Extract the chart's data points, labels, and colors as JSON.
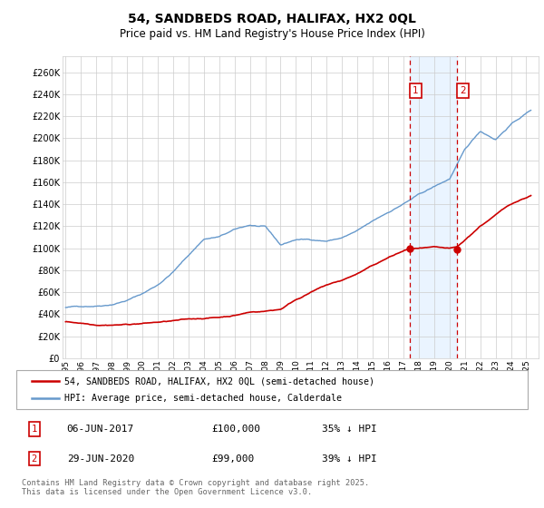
{
  "title": "54, SANDBEDS ROAD, HALIFAX, HX2 0QL",
  "subtitle": "Price paid vs. HM Land Registry's House Price Index (HPI)",
  "ylabel_ticks": [
    0,
    20000,
    40000,
    60000,
    80000,
    100000,
    120000,
    140000,
    160000,
    180000,
    200000,
    220000,
    240000,
    260000
  ],
  "ylabel_labels": [
    "£0",
    "£20K",
    "£40K",
    "£60K",
    "£80K",
    "£100K",
    "£120K",
    "£140K",
    "£160K",
    "£180K",
    "£200K",
    "£220K",
    "£240K",
    "£260K"
  ],
  "xmin": 1994.8,
  "xmax": 2025.8,
  "ymin": 0,
  "ymax": 275000,
  "vline1_x": 2017.43,
  "vline2_x": 2020.5,
  "legend_entry1": "54, SANDBEDS ROAD, HALIFAX, HX2 0QL (semi-detached house)",
  "legend_entry2": "HPI: Average price, semi-detached house, Calderdale",
  "table_row1": [
    "1",
    "06-JUN-2017",
    "£100,000",
    "35% ↓ HPI"
  ],
  "table_row2": [
    "2",
    "29-JUN-2020",
    "£99,000",
    "39% ↓ HPI"
  ],
  "footer": "Contains HM Land Registry data © Crown copyright and database right 2025.\nThis data is licensed under the Open Government Licence v3.0.",
  "background_color": "#ffffff",
  "grid_color": "#cccccc",
  "line_color_red": "#cc0000",
  "line_color_blue": "#6699cc",
  "shade_color": "#ddeeff",
  "vline_color": "#cc0000",
  "hpi_key_years": [
    1995,
    1996,
    1997,
    1998,
    1999,
    2000,
    2001,
    2002,
    2003,
    2004,
    2005,
    2006,
    2007,
    2008,
    2009,
    2010,
    2011,
    2012,
    2013,
    2014,
    2015,
    2016,
    2017,
    2018,
    2019,
    2020,
    2021,
    2022,
    2023,
    2024,
    2025.3
  ],
  "hpi_key_vals": [
    46000,
    47000,
    48000,
    50000,
    54000,
    60000,
    68000,
    80000,
    95000,
    110000,
    112000,
    118000,
    122000,
    120000,
    103000,
    108000,
    108000,
    107000,
    110000,
    116000,
    124000,
    132000,
    140000,
    148000,
    155000,
    162000,
    188000,
    205000,
    198000,
    212000,
    225000
  ],
  "pp_key_years": [
    1995.0,
    1996,
    1997,
    1998,
    1999,
    2000,
    2001,
    2002,
    2003,
    2004,
    2005,
    2006,
    2007,
    2008,
    2009,
    2010,
    2011,
    2012,
    2013,
    2014,
    2015,
    2016,
    2017.0,
    2017.43,
    2018,
    2019,
    2020.0,
    2020.5,
    2021,
    2022,
    2023,
    2024,
    2025.3
  ],
  "pp_key_vals": [
    33000,
    32000,
    31000,
    31500,
    32000,
    33000,
    34000,
    35000,
    36000,
    37000,
    38000,
    40000,
    43000,
    44000,
    46000,
    55000,
    62000,
    68000,
    72000,
    78000,
    85000,
    92000,
    98000,
    100000,
    100000,
    100000,
    98000,
    99000,
    105000,
    118000,
    128000,
    138000,
    146000
  ]
}
